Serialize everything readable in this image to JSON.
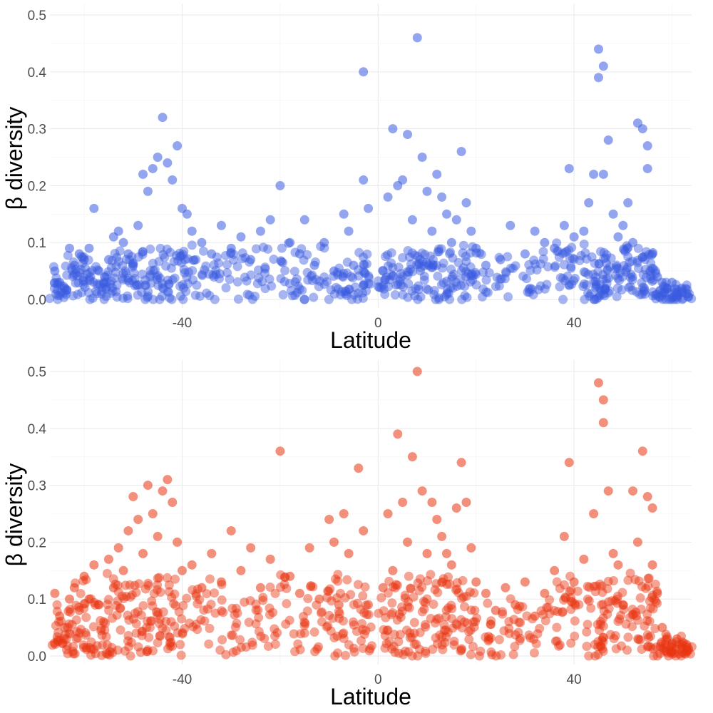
{
  "chart_data": [
    {
      "type": "scatter",
      "title": "",
      "xlabel": "Latitude",
      "ylabel": "β diversity",
      "xlim": [
        -67,
        64
      ],
      "ylim": [
        -0.015,
        0.52
      ],
      "xticks": [
        -40,
        0,
        40
      ],
      "xtick_labels": [
        "-40",
        "0",
        "40"
      ],
      "yticks": [
        0.0,
        0.1,
        0.2,
        0.3,
        0.4,
        0.5
      ],
      "ytick_labels": [
        "0.0",
        "0.1",
        "0.2",
        "0.3",
        "0.4",
        "0.5"
      ],
      "grid": true,
      "color": "#3a5be0",
      "series": [
        {
          "points": [
            [
              -66,
              0.05
            ],
            [
              -65,
              0.03
            ],
            [
              -64,
              0.02
            ],
            [
              -63,
              0.09
            ],
            [
              -62,
              0.06
            ],
            [
              -61,
              0.08
            ],
            [
              -60,
              0.07
            ],
            [
              -59,
              0.09
            ],
            [
              -58,
              0.16
            ],
            [
              -57,
              0.05
            ],
            [
              -56,
              0.03
            ],
            [
              -55,
              0.07
            ],
            [
              -54,
              0.11
            ],
            [
              -53,
              0.12
            ],
            [
              -52,
              0.1
            ],
            [
              -51,
              0.08
            ],
            [
              -50,
              0.06
            ],
            [
              -49,
              0.13
            ],
            [
              -48,
              0.22
            ],
            [
              -47,
              0.19
            ],
            [
              -46,
              0.23
            ],
            [
              -45,
              0.25
            ],
            [
              -44,
              0.32
            ],
            [
              -43,
              0.24
            ],
            [
              -42,
              0.21
            ],
            [
              -41,
              0.27
            ],
            [
              -40,
              0.16
            ],
            [
              -39,
              0.15
            ],
            [
              -38,
              0.12
            ],
            [
              -36,
              0.1
            ],
            [
              -34,
              0.08
            ],
            [
              -32,
              0.13
            ],
            [
              -30,
              0.09
            ],
            [
              -28,
              0.11
            ],
            [
              -26,
              0.07
            ],
            [
              -24,
              0.12
            ],
            [
              -22,
              0.14
            ],
            [
              -20,
              0.2
            ],
            [
              -18,
              0.1
            ],
            [
              -16,
              0.08
            ],
            [
              -15,
              0.14
            ],
            [
              -13,
              0.06
            ],
            [
              -11,
              0.1
            ],
            [
              -9,
              0.05
            ],
            [
              -7,
              0.15
            ],
            [
              -6,
              0.12
            ],
            [
              -5,
              0.06
            ],
            [
              -3,
              0.4
            ],
            [
              -3,
              0.21
            ],
            [
              -2,
              0.16
            ],
            [
              1,
              0.05
            ],
            [
              2,
              0.18
            ],
            [
              3,
              0.3
            ],
            [
              4,
              0.2
            ],
            [
              5,
              0.21
            ],
            [
              6,
              0.29
            ],
            [
              7,
              0.14
            ],
            [
              8,
              0.46
            ],
            [
              9,
              0.25
            ],
            [
              10,
              0.19
            ],
            [
              11,
              0.12
            ],
            [
              12,
              0.22
            ],
            [
              13,
              0.18
            ],
            [
              14,
              0.15
            ],
            [
              15,
              0.1
            ],
            [
              16,
              0.14
            ],
            [
              17,
              0.26
            ],
            [
              18,
              0.17
            ],
            [
              19,
              0.12
            ],
            [
              20,
              0.09
            ],
            [
              22,
              0.06
            ],
            [
              25,
              0.07
            ],
            [
              27,
              0.13
            ],
            [
              30,
              0.08
            ],
            [
              32,
              0.12
            ],
            [
              34,
              0.1
            ],
            [
              36,
              0.09
            ],
            [
              38,
              0.13
            ],
            [
              39,
              0.23
            ],
            [
              40,
              0.11
            ],
            [
              42,
              0.12
            ],
            [
              43,
              0.17
            ],
            [
              44,
              0.22
            ],
            [
              45,
              0.44
            ],
            [
              45,
              0.39
            ],
            [
              46,
              0.41
            ],
            [
              46,
              0.22
            ],
            [
              47,
              0.28
            ],
            [
              48,
              0.15
            ],
            [
              49,
              0.11
            ],
            [
              50,
              0.13
            ],
            [
              51,
              0.17
            ],
            [
              52,
              0.1
            ],
            [
              53,
              0.31
            ],
            [
              54,
              0.3
            ],
            [
              55,
              0.27
            ],
            [
              55,
              0.23
            ],
            [
              56,
              0.08
            ],
            [
              57,
              0.04
            ],
            [
              58,
              0.03
            ],
            [
              59,
              0.02
            ],
            [
              60,
              0.03
            ],
            [
              61,
              0.01
            ],
            [
              62,
              0.02
            ],
            [
              63,
              0.01
            ]
          ]
        }
      ]
    },
    {
      "type": "scatter",
      "title": "",
      "xlabel": "Latitude",
      "ylabel": "β diversity",
      "xlim": [
        -67,
        64
      ],
      "ylim": [
        -0.015,
        0.52
      ],
      "xticks": [
        -40,
        0,
        40
      ],
      "xtick_labels": [
        "-40",
        "0",
        "40"
      ],
      "yticks": [
        0.0,
        0.1,
        0.2,
        0.3,
        0.4,
        0.5
      ],
      "ytick_labels": [
        "0.0",
        "0.1",
        "0.2",
        "0.3",
        "0.4",
        "0.5"
      ],
      "grid": true,
      "color": "#e8340f",
      "series": [
        {
          "points": [
            [
              -66,
              0.11
            ],
            [
              -65,
              0.07
            ],
            [
              -64,
              0.05
            ],
            [
              -63,
              0.1
            ],
            [
              -62,
              0.12
            ],
            [
              -61,
              0.08
            ],
            [
              -60,
              0.14
            ],
            [
              -59,
              0.1
            ],
            [
              -58,
              0.16
            ],
            [
              -57,
              0.09
            ],
            [
              -56,
              0.06
            ],
            [
              -55,
              0.17
            ],
            [
              -54,
              0.12
            ],
            [
              -53,
              0.19
            ],
            [
              -52,
              0.15
            ],
            [
              -51,
              0.22
            ],
            [
              -50,
              0.28
            ],
            [
              -49,
              0.24
            ],
            [
              -48,
              0.18
            ],
            [
              -47,
              0.3
            ],
            [
              -46,
              0.25
            ],
            [
              -45,
              0.21
            ],
            [
              -44,
              0.29
            ],
            [
              -43,
              0.31
            ],
            [
              -42,
              0.27
            ],
            [
              -41,
              0.2
            ],
            [
              -40,
              0.15
            ],
            [
              -38,
              0.16
            ],
            [
              -36,
              0.12
            ],
            [
              -34,
              0.18
            ],
            [
              -32,
              0.13
            ],
            [
              -30,
              0.22
            ],
            [
              -28,
              0.15
            ],
            [
              -26,
              0.19
            ],
            [
              -24,
              0.12
            ],
            [
              -22,
              0.17
            ],
            [
              -20,
              0.36
            ],
            [
              -18,
              0.14
            ],
            [
              -16,
              0.11
            ],
            [
              -14,
              0.19
            ],
            [
              -12,
              0.1
            ],
            [
              -10,
              0.24
            ],
            [
              -9,
              0.2
            ],
            [
              -8,
              0.09
            ],
            [
              -7,
              0.25
            ],
            [
              -6,
              0.18
            ],
            [
              -4,
              0.33
            ],
            [
              -3,
              0.22
            ],
            [
              -2,
              0.09
            ],
            [
              1,
              0.12
            ],
            [
              2,
              0.25
            ],
            [
              3,
              0.15
            ],
            [
              4,
              0.39
            ],
            [
              5,
              0.27
            ],
            [
              6,
              0.2
            ],
            [
              7,
              0.35
            ],
            [
              8,
              0.5
            ],
            [
              9,
              0.29
            ],
            [
              10,
              0.18
            ],
            [
              11,
              0.27
            ],
            [
              12,
              0.24
            ],
            [
              13,
              0.21
            ],
            [
              14,
              0.18
            ],
            [
              15,
              0.16
            ],
            [
              16,
              0.26
            ],
            [
              17,
              0.34
            ],
            [
              18,
              0.27
            ],
            [
              19,
              0.19
            ],
            [
              20,
              0.13
            ],
            [
              22,
              0.11
            ],
            [
              24,
              0.08
            ],
            [
              26,
              0.12
            ],
            [
              28,
              0.09
            ],
            [
              30,
              0.13
            ],
            [
              32,
              0.07
            ],
            [
              34,
              0.11
            ],
            [
              36,
              0.15
            ],
            [
              38,
              0.21
            ],
            [
              39,
              0.34
            ],
            [
              40,
              0.13
            ],
            [
              42,
              0.17
            ],
            [
              44,
              0.25
            ],
            [
              45,
              0.48
            ],
            [
              46,
              0.45
            ],
            [
              46,
              0.41
            ],
            [
              47,
              0.29
            ],
            [
              48,
              0.18
            ],
            [
              49,
              0.16
            ],
            [
              50,
              0.09
            ],
            [
              52,
              0.29
            ],
            [
              53,
              0.2
            ],
            [
              54,
              0.36
            ],
            [
              55,
              0.28
            ],
            [
              56,
              0.26
            ],
            [
              56,
              0.16
            ],
            [
              57,
              0.11
            ],
            [
              58,
              0.05
            ],
            [
              59,
              0.03
            ],
            [
              60,
              0.02
            ],
            [
              61,
              0.03
            ],
            [
              62,
              0.02
            ],
            [
              63,
              0.02
            ]
          ]
        }
      ]
    }
  ]
}
